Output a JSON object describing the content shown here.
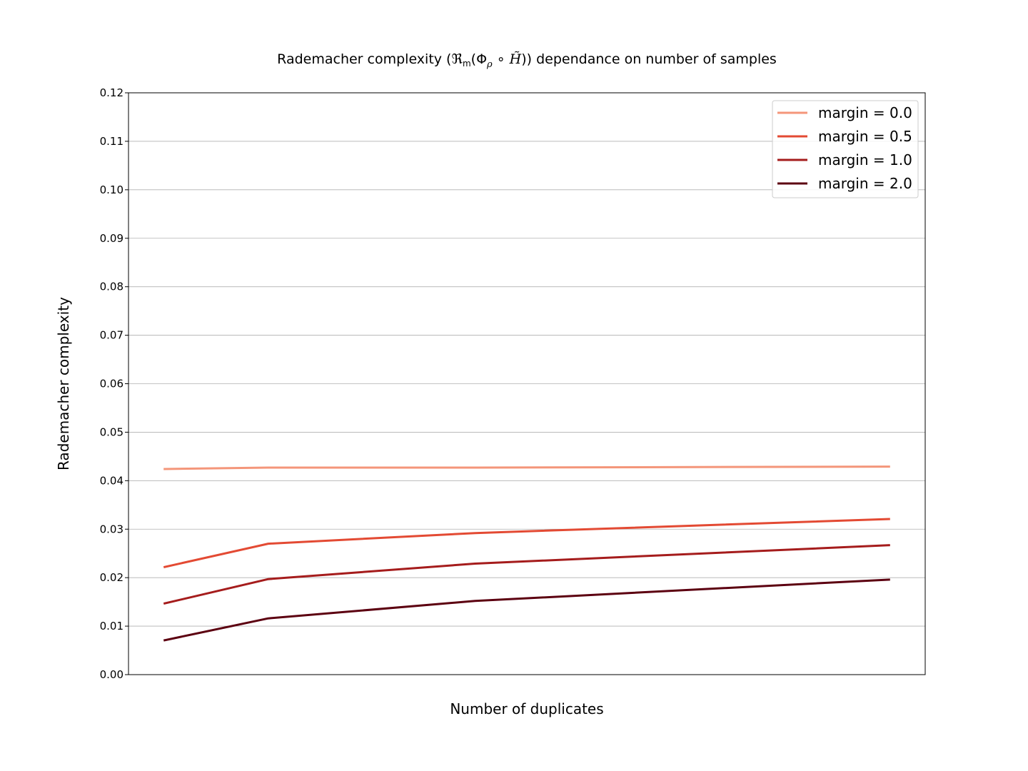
{
  "chart_data": {
    "type": "line",
    "title": "Rademacher complexity (𝔑ₘ(Φ_ρ ∘ H̃)) dependance on number of samples",
    "title_parts": {
      "prefix": "Rademacher complexity (",
      "frak": "ℜ",
      "sub_m": "m",
      "open": "(Φ",
      "sub_rho": "ρ",
      "circ": " ∘ ",
      "h": "H̃",
      "suffix": ")) dependance on number of samples"
    },
    "xlabel": "Number of duplicates",
    "ylabel": "Rademacher complexity",
    "ylim": [
      0,
      0.12
    ],
    "xlim": [
      0.65,
      8.35
    ],
    "yticks": [
      "0.00",
      "0.01",
      "0.02",
      "0.03",
      "0.04",
      "0.05",
      "0.06",
      "0.07",
      "0.08",
      "0.09",
      "0.10",
      "0.11",
      "0.12"
    ],
    "grid": "horizontal",
    "legend_position": "top-right",
    "x": [
      1,
      2,
      4,
      8
    ],
    "series": [
      {
        "name": "margin = 0.0",
        "color": "#f4967a",
        "values": [
          0.0424,
          0.0427,
          0.0427,
          0.0429
        ]
      },
      {
        "name": "margin = 0.5",
        "color": "#e34a33",
        "values": [
          0.0222,
          0.027,
          0.0292,
          0.0321
        ]
      },
      {
        "name": "margin = 1.0",
        "color": "#a51c1c",
        "values": [
          0.0147,
          0.0197,
          0.0229,
          0.0267
        ]
      },
      {
        "name": "margin = 2.0",
        "color": "#5c0010",
        "values": [
          0.0071,
          0.0116,
          0.0152,
          0.0196
        ]
      }
    ]
  }
}
